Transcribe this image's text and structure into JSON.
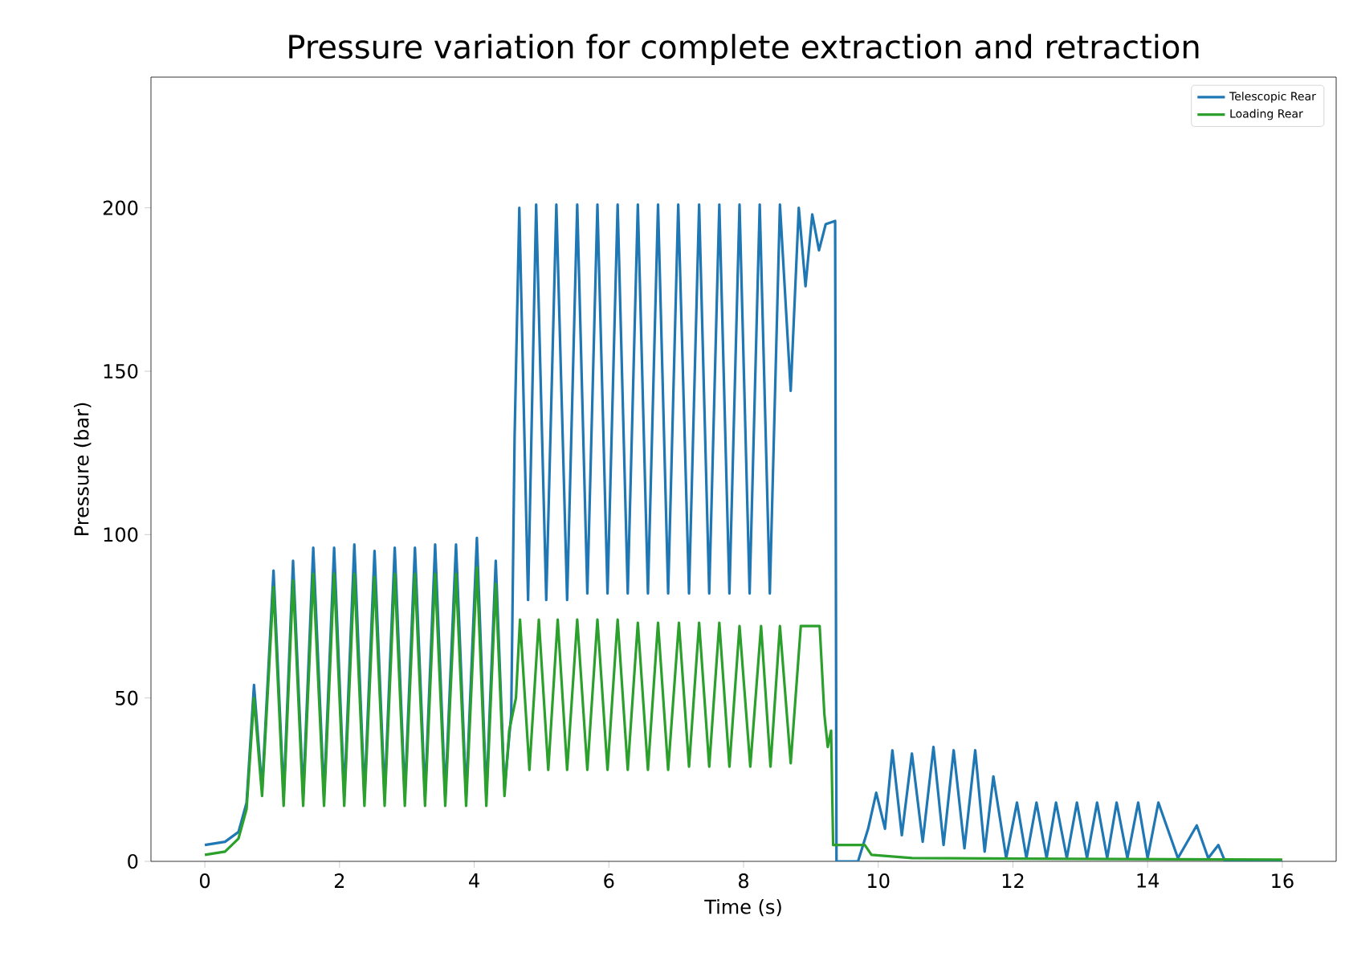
{
  "chart_data": {
    "type": "line",
    "title": "Pressure variation for complete extraction and retraction",
    "xlabel": "Time (s)",
    "ylabel": "Pressure (bar)",
    "xlim": [
      -0.8,
      16.8
    ],
    "ylim": [
      0,
      240
    ],
    "xticks": [
      0,
      2,
      4,
      6,
      8,
      10,
      12,
      14,
      16
    ],
    "yticks": [
      0,
      50,
      100,
      150,
      200
    ],
    "legend": "top right",
    "series": [
      {
        "name": "Telescopic Rear",
        "color": "#1f77b4",
        "x": [
          0,
          0.3,
          0.5,
          0.62,
          0.73,
          0.85,
          1.02,
          1.17,
          1.31,
          1.46,
          1.61,
          1.77,
          1.92,
          2.07,
          2.22,
          2.37,
          2.52,
          2.67,
          2.82,
          2.97,
          3.12,
          3.27,
          3.42,
          3.57,
          3.73,
          3.88,
          4.04,
          4.18,
          4.32,
          4.45,
          4.55,
          4.6,
          4.67,
          4.8,
          4.92,
          5.07,
          5.22,
          5.38,
          5.53,
          5.68,
          5.83,
          5.98,
          6.13,
          6.28,
          6.43,
          6.58,
          6.73,
          6.88,
          7.03,
          7.19,
          7.34,
          7.49,
          7.64,
          7.79,
          7.94,
          8.09,
          8.24,
          8.39,
          8.54,
          8.7,
          8.82,
          8.92,
          9.02,
          9.12,
          9.22,
          9.36,
          9.38,
          9.7,
          9.85,
          9.97,
          10.1,
          10.21,
          10.35,
          10.5,
          10.66,
          10.82,
          10.97,
          11.12,
          11.28,
          11.44,
          11.58,
          11.71,
          11.9,
          12.06,
          12.2,
          12.35,
          12.5,
          12.64,
          12.8,
          12.95,
          13.1,
          13.25,
          13.4,
          13.54,
          13.7,
          13.86,
          14.0,
          14.16,
          14.45,
          14.73,
          14.9,
          15.05,
          15.15,
          16
        ],
        "values": [
          5,
          6,
          9,
          18,
          54,
          22,
          89,
          20,
          92,
          20,
          96,
          20,
          96,
          20,
          97,
          20,
          95,
          20,
          96,
          20,
          96,
          20,
          97,
          20,
          97,
          20,
          99,
          20,
          92,
          22,
          45,
          130,
          200,
          80,
          201,
          80,
          201,
          80,
          201,
          82,
          201,
          82,
          201,
          82,
          201,
          82,
          201,
          82,
          201,
          82,
          201,
          82,
          201,
          82,
          201,
          82,
          201,
          82,
          201,
          144,
          200,
          176,
          198,
          187,
          195,
          196,
          0,
          0,
          10,
          21,
          10,
          34,
          8,
          33,
          6,
          35,
          5,
          34,
          4,
          34,
          3,
          26,
          1,
          18,
          1,
          18,
          1,
          18,
          1,
          18,
          1,
          18,
          1,
          18,
          1,
          18,
          1,
          18,
          1,
          11,
          1,
          5,
          0,
          0
        ]
      },
      {
        "name": "Loading Rear",
        "color": "#2ca02c",
        "x": [
          0,
          0.3,
          0.5,
          0.62,
          0.73,
          0.85,
          1.02,
          1.17,
          1.31,
          1.46,
          1.61,
          1.77,
          1.92,
          2.07,
          2.22,
          2.37,
          2.52,
          2.67,
          2.82,
          2.97,
          3.12,
          3.27,
          3.42,
          3.57,
          3.73,
          3.88,
          4.04,
          4.18,
          4.32,
          4.45,
          4.52,
          4.62,
          4.68,
          4.82,
          4.96,
          5.1,
          5.24,
          5.38,
          5.53,
          5.68,
          5.83,
          5.98,
          6.13,
          6.28,
          6.43,
          6.58,
          6.73,
          6.88,
          7.04,
          7.19,
          7.34,
          7.49,
          7.64,
          7.79,
          7.94,
          8.1,
          8.26,
          8.4,
          8.54,
          8.7,
          8.85,
          9.13,
          9.2,
          9.25,
          9.3,
          9.33,
          9.8,
          9.9,
          10.5,
          16
        ],
        "values": [
          2,
          3,
          7,
          16,
          50,
          20,
          84,
          17,
          86,
          17,
          88,
          17,
          88,
          17,
          88,
          17,
          87,
          17,
          88,
          17,
          88,
          17,
          88,
          17,
          88,
          17,
          90,
          17,
          85,
          20,
          40,
          50,
          74,
          28,
          74,
          28,
          74,
          28,
          74,
          28,
          74,
          28,
          74,
          28,
          73,
          28,
          73,
          28,
          73,
          29,
          73,
          29,
          73,
          29,
          72,
          29,
          72,
          29,
          72,
          30,
          72,
          72,
          45,
          35,
          40,
          5,
          5,
          2,
          1,
          0.5
        ]
      }
    ]
  }
}
